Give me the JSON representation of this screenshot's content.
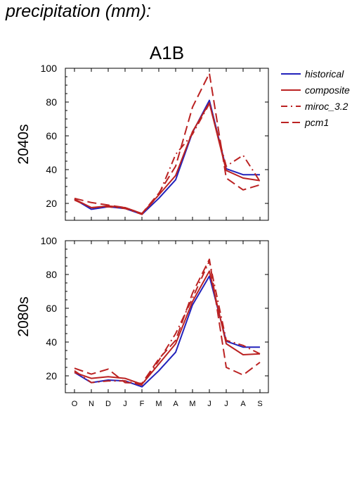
{
  "page": {
    "title": "precipitation (mm):"
  },
  "colors": {
    "historical": "#2222bb",
    "model": "#bb2222"
  },
  "chart_data": [
    {
      "type": "line",
      "title": "A1B",
      "ylabel": "2040s",
      "xlabel": "",
      "categories": [
        "O",
        "N",
        "D",
        "J",
        "F",
        "M",
        "A",
        "M",
        "J",
        "J",
        "A",
        "S"
      ],
      "ylim": [
        10,
        100
      ],
      "yticks": [
        20,
        40,
        60,
        80,
        100
      ],
      "grid": false,
      "legend": "right",
      "series": [
        {
          "name": "historical",
          "dash": "solid",
          "values": [
            22.5,
            16.5,
            18,
            17,
            13.5,
            23,
            34,
            62,
            81,
            40.5,
            37,
            37
          ]
        },
        {
          "name": "composite",
          "dash": "solid",
          "values": [
            22.5,
            17.5,
            18.5,
            17.5,
            14,
            25,
            36.5,
            62.5,
            79.5,
            39.5,
            35,
            33.5
          ]
        },
        {
          "name": "miroc_3.2",
          "dash": "dashdot",
          "values": [
            22,
            17.5,
            18,
            17,
            13.5,
            25,
            49,
            61,
            79,
            42,
            48.5,
            33
          ]
        },
        {
          "name": "pcm1",
          "dash": "dash",
          "values": [
            23,
            20.5,
            19,
            17.5,
            14,
            26,
            42,
            77,
            97,
            35,
            28,
            31
          ]
        }
      ]
    },
    {
      "type": "line",
      "title": "",
      "ylabel": "2080s",
      "xlabel": "",
      "categories": [
        "O",
        "N",
        "D",
        "J",
        "F",
        "M",
        "A",
        "M",
        "J",
        "J",
        "A",
        "S"
      ],
      "ylim": [
        10,
        100
      ],
      "yticks": [
        20,
        40,
        60,
        80,
        100
      ],
      "grid": false,
      "legend": "right",
      "series": [
        {
          "name": "historical",
          "dash": "solid",
          "values": [
            22,
            16,
            17.5,
            17,
            13.5,
            23,
            34,
            62,
            79,
            40.5,
            37,
            37
          ]
        },
        {
          "name": "composite",
          "dash": "solid",
          "values": [
            22,
            18.5,
            19.5,
            18.5,
            15,
            27,
            39,
            64,
            82,
            39,
            32.5,
            33
          ]
        },
        {
          "name": "miroc_3.2",
          "dash": "dashdot",
          "values": [
            23,
            16,
            17,
            17,
            14.5,
            29,
            45,
            66,
            88,
            41,
            38,
            33
          ]
        },
        {
          "name": "pcm1",
          "dash": "dash",
          "values": [
            24.5,
            21,
            24,
            16,
            15.5,
            30,
            41,
            69,
            89,
            25,
            20.5,
            28
          ]
        }
      ]
    }
  ]
}
